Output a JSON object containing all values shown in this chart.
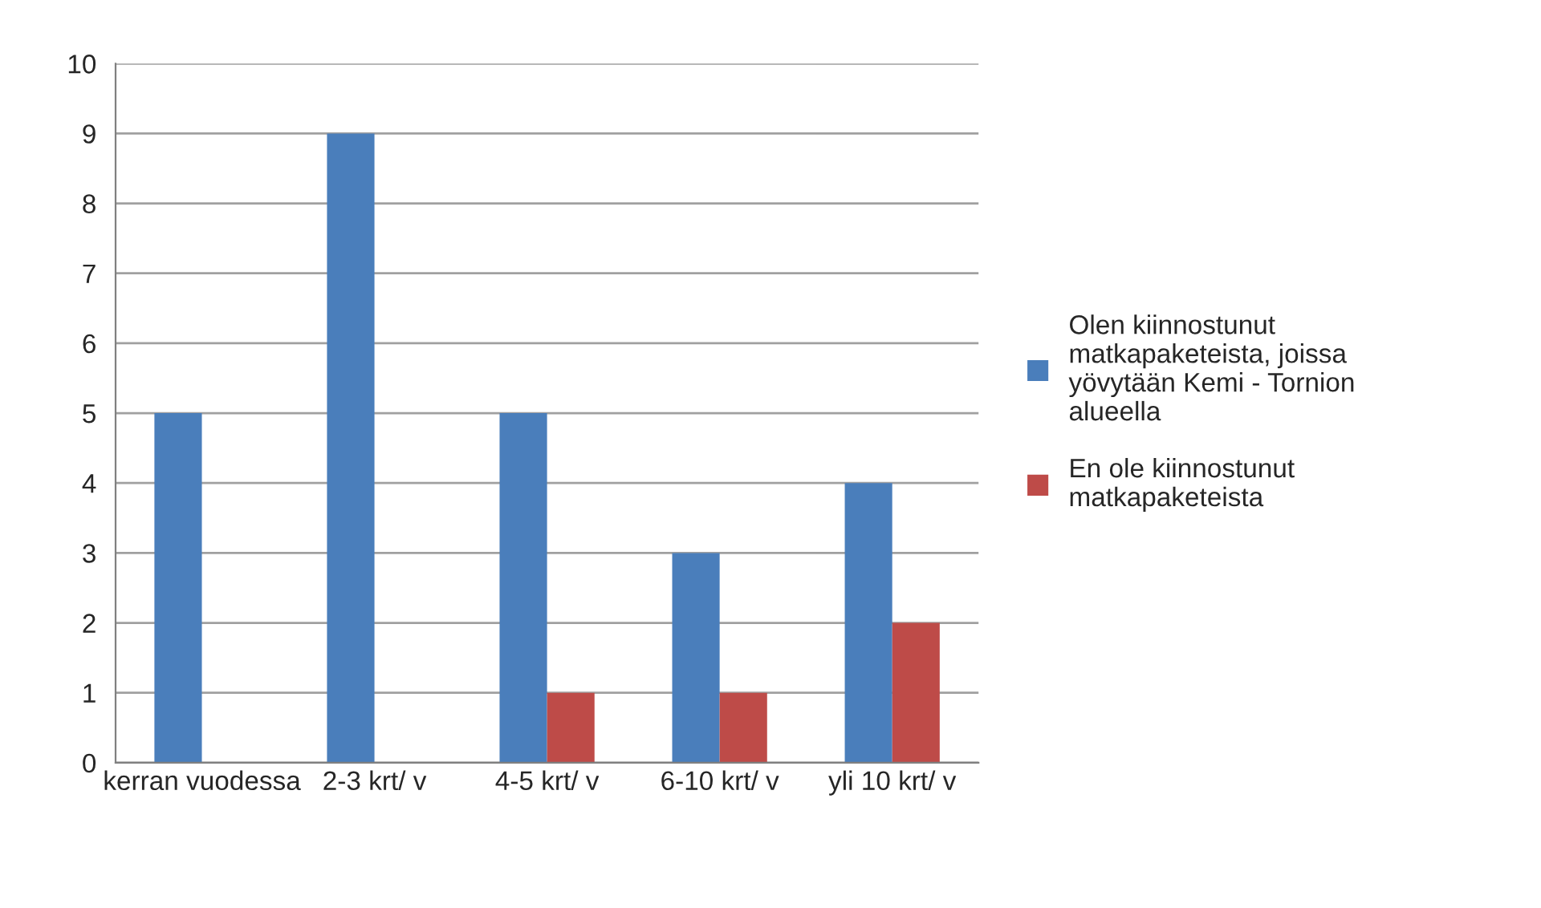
{
  "chart_data": {
    "type": "bar",
    "categories": [
      "kerran vuodessa",
      "2-3 krt/ v",
      "4-5 krt/ v",
      "6-10 krt/ v",
      "yli 10 krt/ v"
    ],
    "series": [
      {
        "name": "Olen kiinnostunut\nmatkapaketeista, joissa\nyövytään Kemi - Tornion\nalueella",
        "color": "#4a7ebb",
        "values": [
          5,
          9,
          5,
          3,
          4
        ]
      },
      {
        "name": "En ole kiinnostunut\nmatkapaketeista",
        "color": "#be4b48",
        "values": [
          null,
          null,
          1,
          1,
          2
        ]
      }
    ],
    "ylim": [
      0,
      10
    ],
    "yticks": [
      0,
      1,
      2,
      3,
      4,
      5,
      6,
      7,
      8,
      9,
      10
    ],
    "grid": "y",
    "legend": "right"
  }
}
